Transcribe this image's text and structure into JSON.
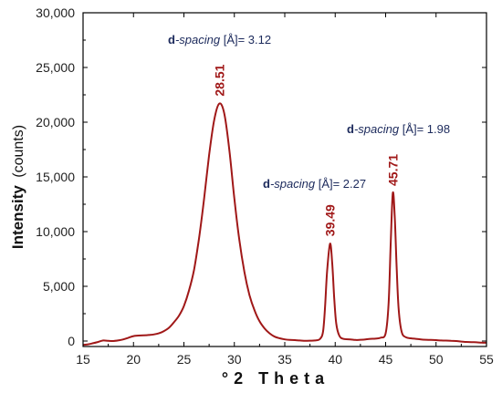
{
  "chart_data": {
    "type": "line",
    "xlabel_prefix": "°",
    "xlabel": "2 Theta",
    "ylabel_main": "Intensity",
    "ylabel_unit": "(counts)",
    "xlim": [
      15,
      55
    ],
    "ylim": [
      -500,
      30000
    ],
    "x_ticks": [
      15,
      20,
      25,
      30,
      35,
      40,
      45,
      50,
      55
    ],
    "y_ticks": [
      0,
      5000,
      10000,
      15000,
      20000,
      25000,
      30000
    ],
    "y_tick_labels": [
      "0",
      "5,000",
      "10,000",
      "15,000",
      "20,000",
      "25,000",
      "30,000"
    ],
    "grid": false,
    "series": [
      {
        "color": "#a01818",
        "points": [
          [
            15.0,
            -350
          ],
          [
            15.5,
            -300
          ],
          [
            16.0,
            -200
          ],
          [
            16.5,
            -80
          ],
          [
            17.0,
            50
          ],
          [
            17.5,
            20
          ],
          [
            18.0,
            0
          ],
          [
            18.5,
            60
          ],
          [
            19.0,
            150
          ],
          [
            19.5,
            300
          ],
          [
            20.0,
            450
          ],
          [
            20.5,
            500
          ],
          [
            21.0,
            520
          ],
          [
            21.5,
            550
          ],
          [
            22.0,
            600
          ],
          [
            22.5,
            700
          ],
          [
            23.0,
            900
          ],
          [
            23.5,
            1200
          ],
          [
            24.0,
            1700
          ],
          [
            24.5,
            2300
          ],
          [
            25.0,
            3200
          ],
          [
            25.5,
            4600
          ],
          [
            26.0,
            6500
          ],
          [
            26.5,
            9400
          ],
          [
            27.0,
            13000
          ],
          [
            27.5,
            17000
          ],
          [
            28.0,
            20200
          ],
          [
            28.51,
            21700
          ],
          [
            29.0,
            20800
          ],
          [
            29.5,
            17500
          ],
          [
            30.0,
            13000
          ],
          [
            30.5,
            9200
          ],
          [
            31.0,
            6300
          ],
          [
            31.5,
            4200
          ],
          [
            32.0,
            2800
          ],
          [
            32.5,
            1800
          ],
          [
            33.0,
            1150
          ],
          [
            33.5,
            700
          ],
          [
            34.0,
            400
          ],
          [
            34.5,
            250
          ],
          [
            35.0,
            150
          ],
          [
            35.5,
            100
          ],
          [
            36.0,
            80
          ],
          [
            36.5,
            50
          ],
          [
            37.0,
            20
          ],
          [
            37.5,
            30
          ],
          [
            38.0,
            50
          ],
          [
            38.5,
            200
          ],
          [
            38.8,
            900
          ],
          [
            39.0,
            3200
          ],
          [
            39.2,
            6400
          ],
          [
            39.49,
            8900
          ],
          [
            39.7,
            7200
          ],
          [
            39.9,
            4000
          ],
          [
            40.1,
            1600
          ],
          [
            40.4,
            500
          ],
          [
            40.8,
            200
          ],
          [
            41.5,
            150
          ],
          [
            42.0,
            100
          ],
          [
            42.5,
            120
          ],
          [
            43.0,
            150
          ],
          [
            43.5,
            200
          ],
          [
            44.0,
            220
          ],
          [
            44.5,
            300
          ],
          [
            45.0,
            700
          ],
          [
            45.3,
            3500
          ],
          [
            45.5,
            8800
          ],
          [
            45.71,
            13500
          ],
          [
            45.9,
            11500
          ],
          [
            46.1,
            6500
          ],
          [
            46.3,
            2800
          ],
          [
            46.6,
            800
          ],
          [
            47.0,
            350
          ],
          [
            47.5,
            250
          ],
          [
            48.0,
            200
          ],
          [
            48.5,
            150
          ],
          [
            49.0,
            120
          ],
          [
            49.5,
            100
          ],
          [
            50.0,
            80
          ],
          [
            50.5,
            50
          ],
          [
            51.0,
            40
          ],
          [
            51.5,
            20
          ],
          [
            52.0,
            0
          ],
          [
            52.5,
            -50
          ],
          [
            53.0,
            -80
          ],
          [
            53.5,
            -100
          ],
          [
            54.0,
            -120
          ],
          [
            54.5,
            -150
          ],
          [
            55.0,
            -150
          ]
        ]
      }
    ],
    "peaks": [
      {
        "x": 28.51,
        "y": 21700,
        "label": "28.51"
      },
      {
        "x": 39.49,
        "y": 8900,
        "label": "39.49"
      },
      {
        "x": 45.71,
        "y": 13500,
        "label": "45.71"
      }
    ],
    "annotations": [
      {
        "bold": "d",
        "italic": "-spacing",
        "rest": " [Å]= 3.12"
      },
      {
        "bold": "d",
        "italic": "-spacing",
        "rest": " [Å]= 2.27"
      },
      {
        "bold": "d",
        "italic": "-spacing",
        "rest": " [Å]= 1.98"
      }
    ],
    "colors": {
      "line": "#a01818",
      "peak_label": "#a01818",
      "annotation": "#1c2a5c",
      "axis": "#000000"
    }
  }
}
